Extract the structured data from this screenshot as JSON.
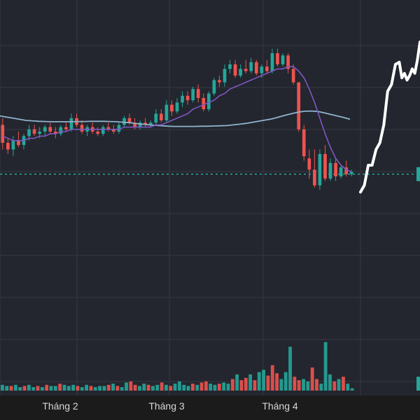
{
  "chart_data": {
    "type": "candlestick",
    "x_tick_labels": [
      "Tháng 2",
      "Tháng 3",
      "Tháng 4"
    ],
    "price_ylim": [
      0,
      100
    ],
    "volume_ylim": [
      0,
      100
    ],
    "grid": true,
    "colors": {
      "background": "#23262e",
      "grid": "#343842",
      "up": "#26a69a",
      "down": "#ef5350",
      "ma_fast": "#7e57c2",
      "ma_slow": "#8fb3cf",
      "reference_line": "#26a69a",
      "overlay_line": "#ffffff",
      "axis_text": "#d8d8d8"
    },
    "reference_level": 41,
    "candles": [
      {
        "o": 63,
        "h": 66,
        "l": 52,
        "c": 55
      },
      {
        "o": 55,
        "h": 57,
        "l": 50,
        "c": 52
      },
      {
        "o": 52,
        "h": 58,
        "l": 49,
        "c": 56
      },
      {
        "o": 56,
        "h": 60,
        "l": 53,
        "c": 54
      },
      {
        "o": 54,
        "h": 59,
        "l": 52,
        "c": 58
      },
      {
        "o": 58,
        "h": 63,
        "l": 56,
        "c": 61
      },
      {
        "o": 61,
        "h": 63,
        "l": 58,
        "c": 59
      },
      {
        "o": 59,
        "h": 62,
        "l": 57,
        "c": 60
      },
      {
        "o": 60,
        "h": 63,
        "l": 58,
        "c": 62
      },
      {
        "o": 62,
        "h": 64,
        "l": 59,
        "c": 60
      },
      {
        "o": 60,
        "h": 62,
        "l": 57,
        "c": 59
      },
      {
        "o": 59,
        "h": 63,
        "l": 58,
        "c": 62
      },
      {
        "o": 62,
        "h": 64,
        "l": 60,
        "c": 61
      },
      {
        "o": 61,
        "h": 68,
        "l": 60,
        "c": 66
      },
      {
        "o": 66,
        "h": 68,
        "l": 62,
        "c": 63
      },
      {
        "o": 63,
        "h": 65,
        "l": 59,
        "c": 60
      },
      {
        "o": 60,
        "h": 63,
        "l": 58,
        "c": 62
      },
      {
        "o": 62,
        "h": 64,
        "l": 59,
        "c": 60
      },
      {
        "o": 60,
        "h": 62,
        "l": 58,
        "c": 59
      },
      {
        "o": 59,
        "h": 63,
        "l": 58,
        "c": 62
      },
      {
        "o": 62,
        "h": 64,
        "l": 60,
        "c": 61
      },
      {
        "o": 61,
        "h": 63,
        "l": 59,
        "c": 60
      },
      {
        "o": 60,
        "h": 64,
        "l": 59,
        "c": 63
      },
      {
        "o": 63,
        "h": 67,
        "l": 62,
        "c": 66
      },
      {
        "o": 66,
        "h": 68,
        "l": 63,
        "c": 64
      },
      {
        "o": 64,
        "h": 66,
        "l": 61,
        "c": 62
      },
      {
        "o": 62,
        "h": 65,
        "l": 61,
        "c": 64
      },
      {
        "o": 64,
        "h": 66,
        "l": 62,
        "c": 63
      },
      {
        "o": 63,
        "h": 65,
        "l": 62,
        "c": 64
      },
      {
        "o": 64,
        "h": 70,
        "l": 63,
        "c": 68
      },
      {
        "o": 68,
        "h": 70,
        "l": 64,
        "c": 65
      },
      {
        "o": 65,
        "h": 74,
        "l": 64,
        "c": 72
      },
      {
        "o": 72,
        "h": 74,
        "l": 67,
        "c": 69
      },
      {
        "o": 69,
        "h": 75,
        "l": 68,
        "c": 73
      },
      {
        "o": 73,
        "h": 78,
        "l": 71,
        "c": 76
      },
      {
        "o": 76,
        "h": 78,
        "l": 72,
        "c": 74
      },
      {
        "o": 74,
        "h": 80,
        "l": 73,
        "c": 79
      },
      {
        "o": 79,
        "h": 81,
        "l": 73,
        "c": 75
      },
      {
        "o": 75,
        "h": 77,
        "l": 69,
        "c": 70
      },
      {
        "o": 70,
        "h": 78,
        "l": 69,
        "c": 77
      },
      {
        "o": 77,
        "h": 84,
        "l": 76,
        "c": 83
      },
      {
        "o": 83,
        "h": 85,
        "l": 80,
        "c": 82
      },
      {
        "o": 82,
        "h": 90,
        "l": 80,
        "c": 88
      },
      {
        "o": 88,
        "h": 92,
        "l": 86,
        "c": 90
      },
      {
        "o": 90,
        "h": 92,
        "l": 84,
        "c": 85
      },
      {
        "o": 85,
        "h": 90,
        "l": 84,
        "c": 88
      },
      {
        "o": 88,
        "h": 92,
        "l": 86,
        "c": 87
      },
      {
        "o": 87,
        "h": 93,
        "l": 86,
        "c": 91
      },
      {
        "o": 91,
        "h": 92,
        "l": 85,
        "c": 86
      },
      {
        "o": 86,
        "h": 90,
        "l": 84,
        "c": 89
      },
      {
        "o": 89,
        "h": 92,
        "l": 86,
        "c": 87
      },
      {
        "o": 87,
        "h": 97,
        "l": 86,
        "c": 95
      },
      {
        "o": 95,
        "h": 97,
        "l": 89,
        "c": 90
      },
      {
        "o": 90,
        "h": 95,
        "l": 89,
        "c": 94
      },
      {
        "o": 94,
        "h": 95,
        "l": 86,
        "c": 88
      },
      {
        "o": 88,
        "h": 90,
        "l": 81,
        "c": 82
      },
      {
        "o": 82,
        "h": 82,
        "l": 60,
        "c": 61
      },
      {
        "o": 61,
        "h": 63,
        "l": 47,
        "c": 49
      },
      {
        "o": 48,
        "h": 52,
        "l": 39,
        "c": 43
      },
      {
        "o": 43,
        "h": 52,
        "l": 35,
        "c": 36
      },
      {
        "o": 36,
        "h": 52,
        "l": 34,
        "c": 50
      },
      {
        "o": 50,
        "h": 54,
        "l": 38,
        "c": 39
      },
      {
        "o": 39,
        "h": 48,
        "l": 38,
        "c": 46
      },
      {
        "o": 46,
        "h": 48,
        "l": 38,
        "c": 40
      },
      {
        "o": 40,
        "h": 45,
        "l": 39,
        "c": 44
      },
      {
        "o": 44,
        "h": 47,
        "l": 40,
        "c": 41
      },
      {
        "o": 41,
        "h": 43,
        "l": 40,
        "c": 42
      }
    ],
    "ma_fast": [
      58,
      57,
      56,
      56,
      56,
      57,
      57,
      58,
      58,
      59,
      59,
      60,
      60,
      61,
      61,
      61,
      61,
      61,
      61,
      61,
      61,
      61,
      61,
      62,
      62,
      62,
      62,
      62,
      62,
      63,
      63,
      64,
      65,
      66,
      67,
      68,
      70,
      71,
      72,
      73,
      74,
      76,
      77,
      79,
      80,
      81,
      82,
      83,
      84,
      85,
      86,
      87,
      88,
      88,
      89,
      89,
      87,
      84,
      79,
      73,
      66,
      59,
      53,
      48,
      45,
      43,
      42
    ],
    "ma_slow": [
      67,
      66.5,
      66,
      65.5,
      65,
      64.8,
      64.6,
      64.5,
      64.4,
      64.4,
      64.4,
      64.4,
      64.5,
      64.5,
      64.6,
      64.6,
      64.6,
      64.5,
      64.4,
      64.2,
      64,
      63.6,
      63.3,
      63,
      62.8,
      62.6,
      62.4,
      62.3,
      62.3,
      62.3,
      62.3,
      62.4,
      62.4,
      62.5,
      62.6,
      62.7,
      63,
      63.3,
      63.7,
      64.2,
      64.7,
      65.2,
      65.7,
      66.5,
      67.3,
      68,
      68.7,
      69.1,
      69.2,
      69,
      68.4,
      67.7,
      67,
      66.3,
      65.5
    ],
    "volume": [
      5,
      4,
      4,
      5,
      3,
      4,
      5,
      3,
      4,
      3,
      5,
      4,
      4,
      6,
      5,
      4,
      5,
      4,
      3,
      5,
      4,
      3,
      4,
      4,
      5,
      6,
      4,
      3,
      7,
      8,
      5,
      4,
      6,
      5,
      4,
      5,
      7,
      5,
      4,
      6,
      8,
      5,
      4,
      6,
      5,
      7,
      8,
      6,
      5,
      6,
      7,
      6,
      10,
      14,
      9,
      11,
      14,
      9,
      16,
      18,
      13,
      22,
      15,
      10,
      16,
      38,
      12,
      9,
      10,
      8,
      20,
      10,
      6,
      42,
      14,
      8,
      10,
      12,
      6,
      2
    ],
    "volume_up": [
      true,
      true,
      false,
      true,
      true,
      false,
      true,
      true,
      false,
      true,
      false,
      true,
      true,
      false,
      true,
      true,
      true,
      false,
      true,
      true,
      false,
      true,
      true,
      true,
      false,
      true,
      false,
      true,
      true,
      false,
      false,
      true,
      true,
      false,
      true,
      true,
      false,
      true,
      false,
      true,
      true,
      true,
      true,
      false,
      true,
      false,
      false,
      true,
      true,
      false,
      true,
      true,
      false,
      true,
      false,
      false,
      true,
      false,
      true,
      true,
      false,
      false,
      false,
      true,
      true,
      true,
      false,
      false,
      true,
      true,
      false,
      false,
      true,
      true,
      true,
      false,
      true,
      false,
      true,
      true
    ],
    "overlay_line": [
      [
        0,
        33
      ],
      [
        3,
        36
      ],
      [
        6,
        45
      ],
      [
        9,
        45
      ],
      [
        12,
        52
      ],
      [
        15,
        55
      ],
      [
        18,
        63
      ],
      [
        21,
        78
      ],
      [
        24,
        81
      ],
      [
        27,
        90
      ],
      [
        30,
        91
      ],
      [
        32,
        84
      ],
      [
        34,
        86
      ],
      [
        36,
        83
      ],
      [
        38,
        85
      ],
      [
        40,
        88
      ],
      [
        42,
        86
      ],
      [
        44,
        92
      ],
      [
        46,
        100
      ]
    ],
    "right_edge_marks": [
      {
        "bar": true,
        "level": 41
      },
      {
        "volume": true,
        "level": 6
      }
    ]
  }
}
